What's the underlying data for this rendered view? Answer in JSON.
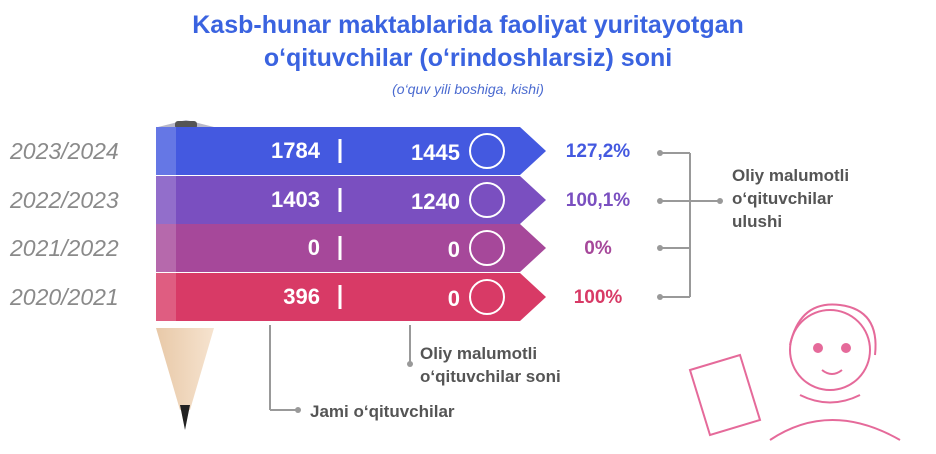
{
  "title_line1": "Kasb-hunar maktablarida faoliyat yuritayotgan",
  "title_line2": "o‘qituvchilar (o‘rindoshlarsiz) soni",
  "subtitle": "(o‘quv yili boshiga, kishi)",
  "colors": {
    "row1": "#4459e0",
    "row2": "#7a4fc0",
    "row3": "#a6489a",
    "row4": "#d83a66",
    "title": "#3a63e0"
  },
  "chart_data": {
    "type": "table",
    "title": "Kasb-hunar maktablarida faoliyat yuritayotgan o‘qituvchilar (o‘rindoshlarsiz) soni",
    "subtitle": "(o‘quv yili boshiga, kishi)",
    "rows": [
      {
        "year": "2023/2024",
        "total": "1784",
        "higher_ed": "1445",
        "share_label": "127,2%",
        "share_value": 127.2
      },
      {
        "year": "2022/2023",
        "total": "1403",
        "higher_ed": "1240",
        "share_label": "100,1%",
        "share_value": 100.1
      },
      {
        "year": "2021/2022",
        "total": "0",
        "higher_ed": "0",
        "share_label": "0%",
        "share_value": 0
      },
      {
        "year": "2020/2021",
        "total": "396",
        "higher_ed": "0",
        "share_label": "100%",
        "share_value": 100
      }
    ],
    "legend_total": "Jami o‘qituvchilar",
    "legend_higher": [
      "Oliy malumotli",
      "o‘qituvchilar soni"
    ],
    "legend_share": [
      "Oliy malumotli",
      "o‘qituvchilar",
      "ulushi"
    ]
  }
}
